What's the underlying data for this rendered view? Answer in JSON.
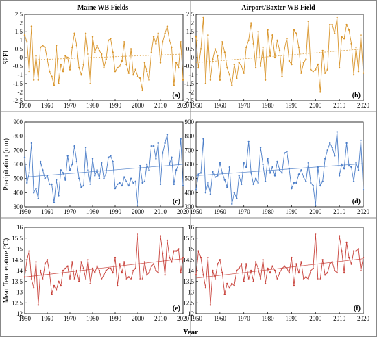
{
  "figure": {
    "column_titles": [
      "Maine WB Fields",
      "Airport/Baxter WB Field"
    ],
    "x_label": "Year"
  },
  "chart_data": [
    {
      "type": "line",
      "panel_label": "(a)",
      "ylabel": "SPEI",
      "xlim": [
        1950,
        2020
      ],
      "ylim": [
        -2.5,
        2.5
      ],
      "xticks": [
        1950,
        1960,
        1970,
        1980,
        1990,
        2000,
        2010,
        2020
      ],
      "yticks": [
        "-2.5",
        "-2",
        "-1.5",
        "-1",
        "-0.5",
        "0",
        "0.5",
        "1",
        "1.5",
        "2",
        "2.5"
      ],
      "color": "#D9952B",
      "trend": [
        -0.15,
        0.2
      ],
      "x": [
        1950,
        1951,
        1952,
        1953,
        1954,
        1955,
        1956,
        1957,
        1958,
        1959,
        1960,
        1961,
        1962,
        1963,
        1964,
        1965,
        1966,
        1967,
        1968,
        1969,
        1970,
        1971,
        1972,
        1973,
        1974,
        1975,
        1976,
        1977,
        1978,
        1979,
        1980,
        1981,
        1982,
        1983,
        1984,
        1985,
        1986,
        1987,
        1988,
        1989,
        1990,
        1991,
        1992,
        1993,
        1994,
        1995,
        1996,
        1997,
        1998,
        1999,
        2000,
        2001,
        2002,
        2003,
        2004,
        2005,
        2006,
        2007,
        2008,
        2009,
        2010,
        2011,
        2012,
        2013,
        2014,
        2015,
        2016,
        2017,
        2018,
        2019,
        2020
      ],
      "y": [
        1.3,
        0.9,
        -0.8,
        1.8,
        -1.3,
        0.1,
        -1.3,
        0.6,
        0.7,
        0.6,
        -0.1,
        -0.8,
        -1.1,
        -1.6,
        0.7,
        -1.5,
        -0.4,
        -0.8,
        0.1,
        0.0,
        -0.7,
        0.6,
        1.4,
        0.7,
        -0.6,
        -1.0,
        -0.4,
        1.4,
        0.2,
        -1.5,
        1.2,
        0.3,
        0.7,
        0.4,
        0.2,
        -0.6,
        -0.1,
        1.0,
        1.1,
        0.3,
        -0.8,
        -0.6,
        -0.5,
        -0.2,
        0.9,
        -0.4,
        -0.9,
        0.5,
        -1.0,
        -0.7,
        -1.1,
        -1.2,
        -1.9,
        -0.3,
        -0.8,
        -1.3,
        0.3,
        1.2,
        0.8,
        1.4,
        -0.3,
        0.9,
        1.4,
        1.8,
        1.0,
        0.6,
        -1.6,
        -0.3,
        -0.6,
        0.9,
        -1.3
      ]
    },
    {
      "type": "line",
      "panel_label": "(b)",
      "ylabel": "",
      "xlim": [
        1950,
        2020
      ],
      "ylim": [
        -2.5,
        2.5
      ],
      "xticks": [
        1950,
        1960,
        1970,
        1980,
        1990,
        2000,
        2010,
        2020
      ],
      "yticks": [
        "-2.5",
        "-2",
        "-1.5",
        "-1",
        "-0.5",
        "0",
        "0.5",
        "1",
        "1.5",
        "2",
        "2.5"
      ],
      "color": "#D9952B",
      "trend": [
        -0.3,
        0.5
      ],
      "x": [
        1950,
        1951,
        1952,
        1953,
        1954,
        1955,
        1956,
        1957,
        1958,
        1959,
        1960,
        1961,
        1962,
        1963,
        1964,
        1965,
        1966,
        1967,
        1968,
        1969,
        1970,
        1971,
        1972,
        1973,
        1974,
        1975,
        1976,
        1977,
        1978,
        1979,
        1980,
        1981,
        1982,
        1983,
        1984,
        1985,
        1986,
        1987,
        1988,
        1989,
        1990,
        1991,
        1992,
        1993,
        1994,
        1995,
        1996,
        1997,
        1998,
        1999,
        2000,
        2001,
        2002,
        2003,
        2004,
        2005,
        2006,
        2007,
        2008,
        2009,
        2010,
        2011,
        2012,
        2013,
        2014,
        2015,
        2016,
        2017,
        2018,
        2019,
        2020
      ],
      "y": [
        1.2,
        -0.6,
        0.5,
        2.3,
        -1.5,
        1.3,
        -1.3,
        -0.1,
        0.5,
        0.1,
        -1.3,
        0.9,
        0.3,
        -0.6,
        -1.0,
        -1.6,
        -0.4,
        -1.2,
        -0.3,
        -0.5,
        -0.9,
        0.6,
        1.0,
        2.0,
        0.8,
        -0.6,
        1.5,
        -0.5,
        0.6,
        -1.3,
        1.6,
        0.1,
        1.3,
        0.0,
        1.0,
        0.4,
        -1.1,
        0.5,
        1.1,
        -0.2,
        -0.4,
        1.6,
        1.4,
        0.6,
        -0.9,
        -0.3,
        -0.1,
        2.1,
        -0.7,
        -0.8,
        -0.7,
        -0.4,
        -2.0,
        0.4,
        -0.9,
        -0.7,
        1.9,
        1.9,
        1.4,
        2.3,
        -0.6,
        1.2,
        1.1,
        1.9,
        1.6,
        0.8,
        -1.0,
        0.6,
        -0.8,
        1.3,
        -0.9
      ]
    },
    {
      "type": "line",
      "panel_label": "(c)",
      "ylabel": "Precipitation (mm)",
      "xlim": [
        1950,
        2020
      ],
      "ylim": [
        300,
        900
      ],
      "xticks": [
        1950,
        1960,
        1970,
        1980,
        1990,
        2000,
        2010,
        2020
      ],
      "yticks": [
        "300",
        "400",
        "500",
        "600",
        "700",
        "800",
        "900"
      ],
      "color": "#4C7EC8",
      "trend": [
        510,
        600
      ],
      "x": [
        1950,
        1951,
        1952,
        1953,
        1954,
        1955,
        1956,
        1957,
        1958,
        1959,
        1960,
        1961,
        1962,
        1963,
        1964,
        1965,
        1966,
        1967,
        1968,
        1969,
        1970,
        1971,
        1972,
        1973,
        1974,
        1975,
        1976,
        1977,
        1978,
        1979,
        1980,
        1981,
        1982,
        1983,
        1984,
        1985,
        1986,
        1987,
        1988,
        1989,
        1990,
        1991,
        1992,
        1993,
        1994,
        1995,
        1996,
        1997,
        1998,
        1999,
        2000,
        2001,
        2002,
        2003,
        2004,
        2005,
        2006,
        2007,
        2008,
        2009,
        2010,
        2011,
        2012,
        2013,
        2014,
        2015,
        2016,
        2017,
        2018,
        2019,
        2020
      ],
      "y": [
        650,
        470,
        540,
        750,
        400,
        430,
        360,
        620,
        560,
        500,
        520,
        460,
        460,
        330,
        490,
        380,
        560,
        540,
        490,
        660,
        560,
        600,
        730,
        620,
        500,
        440,
        450,
        720,
        560,
        460,
        640,
        520,
        560,
        500,
        610,
        500,
        540,
        650,
        660,
        620,
        430,
        460,
        470,
        450,
        510,
        480,
        450,
        500,
        470,
        480,
        310,
        590,
        470,
        480,
        600,
        560,
        730,
        730,
        640,
        750,
        460,
        680,
        750,
        810,
        600,
        650,
        460,
        560,
        600,
        780,
        450
      ]
    },
    {
      "type": "line",
      "panel_label": "(d)",
      "ylabel": "",
      "xlim": [
        1950,
        2020
      ],
      "ylim": [
        300,
        900
      ],
      "xticks": [
        1950,
        1960,
        1970,
        1980,
        1990,
        2000,
        2010,
        2020
      ],
      "yticks": [
        "300",
        "400",
        "500",
        "600",
        "700",
        "800",
        "900"
      ],
      "color": "#4C7EC8",
      "trend": [
        520,
        605
      ],
      "x": [
        1950,
        1951,
        1952,
        1953,
        1954,
        1955,
        1956,
        1957,
        1958,
        1959,
        1960,
        1961,
        1962,
        1963,
        1964,
        1965,
        1966,
        1967,
        1968,
        1969,
        1970,
        1971,
        1972,
        1973,
        1974,
        1975,
        1976,
        1977,
        1978,
        1979,
        1980,
        1981,
        1982,
        1983,
        1984,
        1985,
        1986,
        1987,
        1988,
        1989,
        1990,
        1991,
        1992,
        1993,
        1994,
        1995,
        1996,
        1997,
        1998,
        1999,
        2000,
        2001,
        2002,
        2003,
        2004,
        2005,
        2006,
        2007,
        2008,
        2009,
        2010,
        2011,
        2012,
        2013,
        2014,
        2015,
        2016,
        2017,
        2018,
        2019,
        2020
      ],
      "y": [
        420,
        530,
        540,
        780,
        400,
        470,
        390,
        550,
        510,
        520,
        610,
        540,
        490,
        440,
        580,
        320,
        400,
        360,
        520,
        460,
        610,
        580,
        760,
        540,
        460,
        500,
        470,
        720,
        600,
        480,
        640,
        540,
        580,
        520,
        620,
        560,
        540,
        680,
        690,
        570,
        430,
        470,
        470,
        530,
        560,
        510,
        480,
        610,
        470,
        450,
        310,
        580,
        450,
        480,
        640,
        700,
        750,
        720,
        660,
        830,
        520,
        600,
        570,
        750,
        590,
        580,
        480,
        610,
        560,
        770,
        420
      ]
    },
    {
      "type": "line",
      "panel_label": "(e)",
      "ylabel": "Mean Temperature (ºC)",
      "xlim": [
        1950,
        2020
      ],
      "ylim": [
        12,
        16
      ],
      "xticks": [
        1950,
        1960,
        1970,
        1980,
        1990,
        2000,
        2010,
        2020
      ],
      "yticks": [
        "12",
        "12.5",
        "13",
        "13.5",
        "14",
        "14.5",
        "15",
        "15.5",
        "16"
      ],
      "color": "#C8423B",
      "trend": [
        13.7,
        14.55
      ],
      "x": [
        1950,
        1951,
        1952,
        1953,
        1954,
        1955,
        1956,
        1957,
        1958,
        1959,
        1960,
        1961,
        1962,
        1963,
        1964,
        1965,
        1966,
        1967,
        1968,
        1969,
        1970,
        1971,
        1972,
        1973,
        1974,
        1975,
        1976,
        1977,
        1978,
        1979,
        1980,
        1981,
        1982,
        1983,
        1984,
        1985,
        1986,
        1987,
        1988,
        1989,
        1990,
        1991,
        1992,
        1993,
        1994,
        1995,
        1996,
        1997,
        1998,
        1999,
        2000,
        2001,
        2002,
        2003,
        2004,
        2005,
        2006,
        2007,
        2008,
        2009,
        2010,
        2011,
        2012,
        2013,
        2014,
        2015,
        2016,
        2017,
        2018,
        2019,
        2020
      ],
      "y": [
        13.7,
        14.5,
        14.9,
        13.6,
        13.2,
        14.4,
        12.4,
        14.0,
        13.6,
        14.3,
        14.5,
        13.9,
        12.9,
        13.3,
        13.1,
        13.5,
        13.3,
        14.0,
        14.1,
        14.2,
        13.6,
        14.4,
        13.6,
        14.0,
        13.5,
        14.4,
        14.1,
        13.6,
        14.5,
        13.4,
        14.1,
        13.9,
        14.2,
        14.0,
        13.6,
        13.8,
        14.0,
        14.1,
        14.1,
        13.9,
        14.6,
        13.3,
        14.3,
        13.9,
        14.4,
        13.6,
        13.7,
        13.6,
        14.0,
        14.1,
        15.7,
        13.6,
        13.6,
        14.4,
        13.8,
        13.9,
        14.2,
        14.3,
        14.0,
        13.9,
        15.6,
        14.8,
        13.8,
        15.4,
        14.6,
        14.4,
        14.9,
        14.9,
        15.0,
        13.9,
        14.6
      ]
    },
    {
      "type": "line",
      "panel_label": "(f)",
      "ylabel": "",
      "xlim": [
        1950,
        2020
      ],
      "ylim": [
        12,
        16
      ],
      "xticks": [
        1950,
        1960,
        1970,
        1980,
        1990,
        2000,
        2010,
        2020
      ],
      "yticks": [
        "12",
        "12.5",
        "13",
        "13.5",
        "14",
        "14.5",
        "15",
        "15.5",
        "16"
      ],
      "color": "#C8423B",
      "trend": [
        13.65,
        14.55
      ],
      "x": [
        1950,
        1951,
        1952,
        1953,
        1954,
        1955,
        1956,
        1957,
        1958,
        1959,
        1960,
        1961,
        1962,
        1963,
        1964,
        1965,
        1966,
        1967,
        1968,
        1969,
        1970,
        1971,
        1972,
        1973,
        1974,
        1975,
        1976,
        1977,
        1978,
        1979,
        1980,
        1981,
        1982,
        1983,
        1984,
        1985,
        1986,
        1987,
        1988,
        1989,
        1990,
        1991,
        1992,
        1993,
        1994,
        1995,
        1996,
        1997,
        1998,
        1999,
        2000,
        2001,
        2002,
        2003,
        2004,
        2005,
        2006,
        2007,
        2008,
        2009,
        2010,
        2011,
        2012,
        2013,
        2014,
        2015,
        2016,
        2017,
        2018,
        2019,
        2020
      ],
      "y": [
        13.8,
        14.9,
        14.6,
        13.8,
        13.2,
        14.6,
        12.4,
        14.0,
        13.6,
        14.3,
        14.5,
        13.9,
        12.9,
        13.4,
        13.2,
        13.4,
        13.3,
        14.0,
        14.1,
        14.3,
        13.5,
        14.3,
        13.6,
        14.0,
        13.5,
        14.4,
        14.1,
        13.6,
        14.5,
        13.4,
        14.1,
        13.9,
        14.2,
        14.0,
        13.6,
        13.9,
        14.1,
        14.2,
        14.1,
        13.9,
        14.6,
        13.3,
        14.3,
        13.9,
        14.4,
        13.6,
        13.7,
        13.6,
        14.0,
        14.1,
        15.7,
        13.6,
        13.6,
        14.5,
        13.8,
        13.9,
        14.3,
        14.4,
        14.0,
        13.9,
        15.6,
        14.9,
        13.9,
        15.3,
        14.6,
        14.3,
        14.9,
        14.9,
        15.0,
        14.0,
        14.6
      ]
    }
  ]
}
